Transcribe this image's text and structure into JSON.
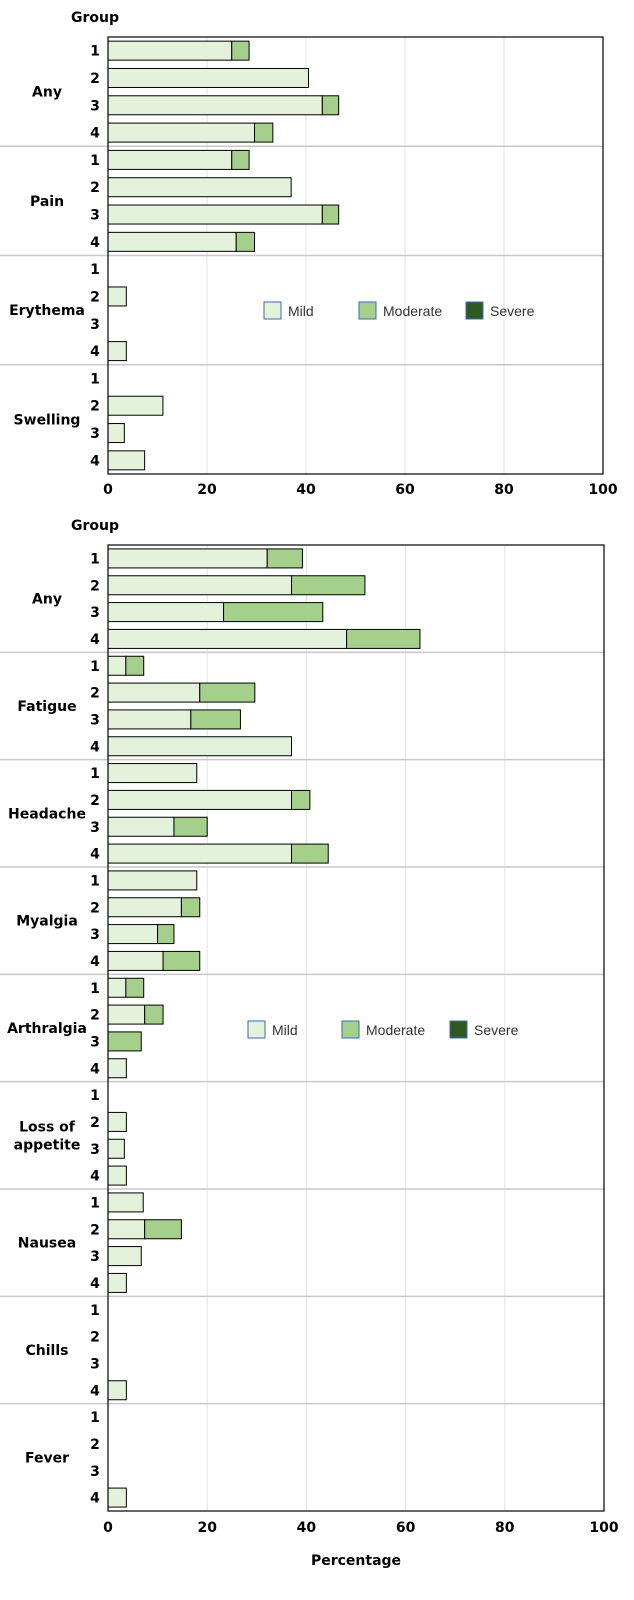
{
  "legend": {
    "mild": "Mild",
    "moderate": "Moderate",
    "severe": "Severe"
  },
  "colors": {
    "mild": "#e4f1db",
    "moderate": "#a4d08c",
    "severe": "#2e5a22",
    "bar_stroke": "#000000",
    "legend_stroke": "#3b6bb5",
    "frame": "#000000",
    "separator": "#c8c8c8",
    "grid": "#e4e4e4"
  },
  "chart_data": [
    {
      "type": "bar",
      "orientation": "horizontal",
      "stacked": true,
      "group_header": "Group",
      "xlabel": "",
      "xlim": [
        0,
        100
      ],
      "xticks": [
        0,
        20,
        40,
        60,
        80,
        100
      ],
      "grid": true,
      "legend_placement": "center-right",
      "series_order": [
        "mild",
        "moderate",
        "severe"
      ],
      "categories": [
        {
          "name": "Any",
          "groups": [
            {
              "group": "1",
              "mild": 25,
              "moderate": 3.5,
              "severe": 0
            },
            {
              "group": "2",
              "mild": 40.5,
              "moderate": 0,
              "severe": 0
            },
            {
              "group": "3",
              "mild": 43.3,
              "moderate": 3.3,
              "severe": 0
            },
            {
              "group": "4",
              "mild": 29.6,
              "moderate": 3.7,
              "severe": 0
            }
          ]
        },
        {
          "name": "Pain",
          "groups": [
            {
              "group": "1",
              "mild": 25,
              "moderate": 3.5,
              "severe": 0
            },
            {
              "group": "2",
              "mild": 37,
              "moderate": 0,
              "severe": 0
            },
            {
              "group": "3",
              "mild": 43.3,
              "moderate": 3.3,
              "severe": 0
            },
            {
              "group": "4",
              "mild": 25.9,
              "moderate": 3.7,
              "severe": 0
            }
          ]
        },
        {
          "name": "Erythema",
          "groups": [
            {
              "group": "1",
              "mild": 0,
              "moderate": 0,
              "severe": 0
            },
            {
              "group": "2",
              "mild": 3.7,
              "moderate": 0,
              "severe": 0
            },
            {
              "group": "3",
              "mild": 0,
              "moderate": 0,
              "severe": 0
            },
            {
              "group": "4",
              "mild": 3.7,
              "moderate": 0,
              "severe": 0
            }
          ]
        },
        {
          "name": "Swelling",
          "groups": [
            {
              "group": "1",
              "mild": 0,
              "moderate": 0,
              "severe": 0
            },
            {
              "group": "2",
              "mild": 11.1,
              "moderate": 0,
              "severe": 0
            },
            {
              "group": "3",
              "mild": 3.3,
              "moderate": 0,
              "severe": 0
            },
            {
              "group": "4",
              "mild": 7.4,
              "moderate": 0,
              "severe": 0
            }
          ]
        }
      ]
    },
    {
      "type": "bar",
      "orientation": "horizontal",
      "stacked": true,
      "group_header": "Group",
      "xlabel": "Percentage",
      "xlim": [
        0,
        100
      ],
      "xticks": [
        0,
        20,
        40,
        60,
        80,
        100
      ],
      "grid": true,
      "legend_placement": "center-right",
      "series_order": [
        "mild",
        "moderate",
        "severe"
      ],
      "categories": [
        {
          "name": "Any",
          "groups": [
            {
              "group": "1",
              "mild": 32.1,
              "moderate": 7.1,
              "severe": 0
            },
            {
              "group": "2",
              "mild": 37,
              "moderate": 14.8,
              "severe": 0
            },
            {
              "group": "3",
              "mild": 23.3,
              "moderate": 20,
              "severe": 0
            },
            {
              "group": "4",
              "mild": 48.1,
              "moderate": 14.8,
              "severe": 0
            }
          ]
        },
        {
          "name": "Fatigue",
          "groups": [
            {
              "group": "1",
              "mild": 3.6,
              "moderate": 3.6,
              "severe": 0
            },
            {
              "group": "2",
              "mild": 18.5,
              "moderate": 11.1,
              "severe": 0
            },
            {
              "group": "3",
              "mild": 16.7,
              "moderate": 10,
              "severe": 0
            },
            {
              "group": "4",
              "mild": 37,
              "moderate": 0,
              "severe": 0
            }
          ]
        },
        {
          "name": "Headache",
          "groups": [
            {
              "group": "1",
              "mild": 17.9,
              "moderate": 0,
              "severe": 0
            },
            {
              "group": "2",
              "mild": 37,
              "moderate": 3.7,
              "severe": 0
            },
            {
              "group": "3",
              "mild": 13.3,
              "moderate": 6.7,
              "severe": 0
            },
            {
              "group": "4",
              "mild": 37,
              "moderate": 7.4,
              "severe": 0
            }
          ]
        },
        {
          "name": "Myalgia",
          "groups": [
            {
              "group": "1",
              "mild": 17.9,
              "moderate": 0,
              "severe": 0
            },
            {
              "group": "2",
              "mild": 14.8,
              "moderate": 3.7,
              "severe": 0
            },
            {
              "group": "3",
              "mild": 10,
              "moderate": 3.3,
              "severe": 0
            },
            {
              "group": "4",
              "mild": 11.1,
              "moderate": 7.4,
              "severe": 0
            }
          ]
        },
        {
          "name": "Arthralgia",
          "groups": [
            {
              "group": "1",
              "mild": 3.6,
              "moderate": 3.6,
              "severe": 0
            },
            {
              "group": "2",
              "mild": 7.4,
              "moderate": 3.7,
              "severe": 0
            },
            {
              "group": "3",
              "mild": 0,
              "moderate": 6.7,
              "severe": 0
            },
            {
              "group": "4",
              "mild": 3.7,
              "moderate": 0,
              "severe": 0
            }
          ]
        },
        {
          "name": "Loss of appetite",
          "name_lines": [
            "Loss of",
            "appetite"
          ],
          "groups": [
            {
              "group": "1",
              "mild": 0,
              "moderate": 0,
              "severe": 0
            },
            {
              "group": "2",
              "mild": 3.7,
              "moderate": 0,
              "severe": 0
            },
            {
              "group": "3",
              "mild": 3.3,
              "moderate": 0,
              "severe": 0
            },
            {
              "group": "4",
              "mild": 3.7,
              "moderate": 0,
              "severe": 0
            }
          ]
        },
        {
          "name": "Nausea",
          "groups": [
            {
              "group": "1",
              "mild": 7.1,
              "moderate": 0,
              "severe": 0
            },
            {
              "group": "2",
              "mild": 7.4,
              "moderate": 7.4,
              "severe": 0
            },
            {
              "group": "3",
              "mild": 6.7,
              "moderate": 0,
              "severe": 0
            },
            {
              "group": "4",
              "mild": 3.7,
              "moderate": 0,
              "severe": 0
            }
          ]
        },
        {
          "name": "Chills",
          "groups": [
            {
              "group": "1",
              "mild": 0,
              "moderate": 0,
              "severe": 0
            },
            {
              "group": "2",
              "mild": 0,
              "moderate": 0,
              "severe": 0
            },
            {
              "group": "3",
              "mild": 0,
              "moderate": 0,
              "severe": 0
            },
            {
              "group": "4",
              "mild": 3.7,
              "moderate": 0,
              "severe": 0
            }
          ]
        },
        {
          "name": "Fever",
          "groups": [
            {
              "group": "1",
              "mild": 0,
              "moderate": 0,
              "severe": 0
            },
            {
              "group": "2",
              "mild": 0,
              "moderate": 0,
              "severe": 0
            },
            {
              "group": "3",
              "mild": 0,
              "moderate": 0,
              "severe": 0
            },
            {
              "group": "4",
              "mild": 3.7,
              "moderate": 0,
              "severe": 0
            }
          ]
        }
      ]
    }
  ]
}
